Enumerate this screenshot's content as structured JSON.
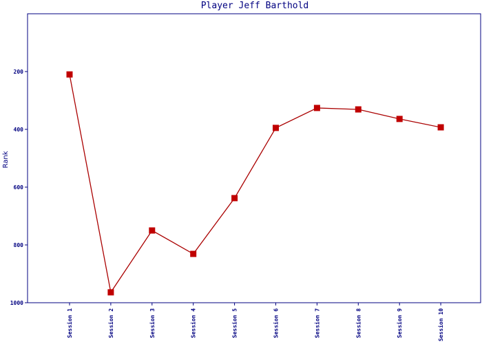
{
  "chart_data": {
    "type": "line",
    "title": "Player Jeff Barthold",
    "y_label": "Rank",
    "categories": [
      "Session 1",
      "Session 2",
      "Session 3",
      "Session 4",
      "Session 5",
      "Session 6",
      "Session 7",
      "Session 8",
      "Session 9",
      "Session 10"
    ],
    "series": [
      {
        "name": "Rank",
        "color": "#aa0000",
        "marker_color": "#c00000",
        "values": [
          210,
          964,
          750,
          831,
          638,
          395,
          326,
          331,
          364,
          393
        ]
      }
    ],
    "ylim": [
      0,
      1000
    ],
    "y_inverted": true,
    "yticks": [
      200,
      400,
      600,
      800,
      1000
    ],
    "grid": false,
    "axis_color": "#000080"
  }
}
